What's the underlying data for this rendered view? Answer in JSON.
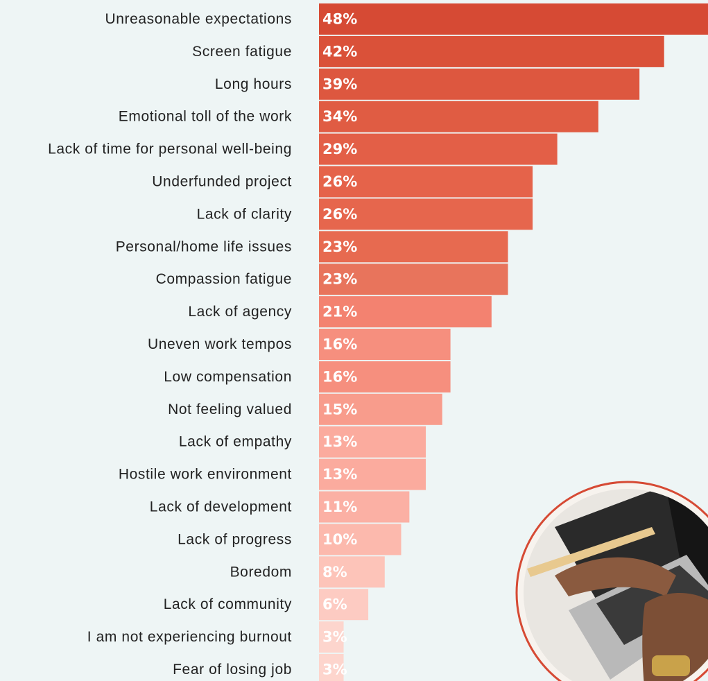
{
  "chart_data": {
    "type": "bar",
    "orientation": "horizontal",
    "categories": [
      "Unreasonable expectations",
      "Screen fatigue",
      "Long hours",
      "Emotional toll of the work",
      "Lack of time for personal well-being",
      "Underfunded project",
      "Lack of clarity",
      "Personal/home life issues",
      "Compassion fatigue",
      "Lack of agency",
      "Uneven work tempos",
      "Low compensation",
      "Not feeling valued",
      "Lack of empathy",
      "Hostile work environment",
      "Lack of development",
      "Lack of progress",
      "Boredom",
      "Lack of community",
      "I am not experiencing burnout",
      "Fear of losing job"
    ],
    "values": [
      48,
      42,
      39,
      34,
      29,
      26,
      26,
      23,
      23,
      21,
      16,
      16,
      15,
      13,
      13,
      11,
      10,
      8,
      6,
      3,
      3
    ],
    "value_labels": [
      "48%",
      "42%",
      "39%",
      "34%",
      "29%",
      "26%",
      "26%",
      "23%",
      "23%",
      "21%",
      "16%",
      "16%",
      "15%",
      "13%",
      "13%",
      "11%",
      "10%",
      "8%",
      "6%",
      "3%",
      "3%"
    ],
    "colors": [
      "#d64a34",
      "#da5139",
      "#dd573f",
      "#e05c43",
      "#e35f47",
      "#e5634a",
      "#e6664d",
      "#e76a50",
      "#e8745c",
      "#f38270",
      "#f68f7e",
      "#f68f7e",
      "#f89c8c",
      "#fbab9e",
      "#fbab9e",
      "#fbb0a4",
      "#fcb9ad",
      "#fdc4b9",
      "#fdcbc2",
      "#fdd5cd",
      "#fdd5cd"
    ]
  }
}
